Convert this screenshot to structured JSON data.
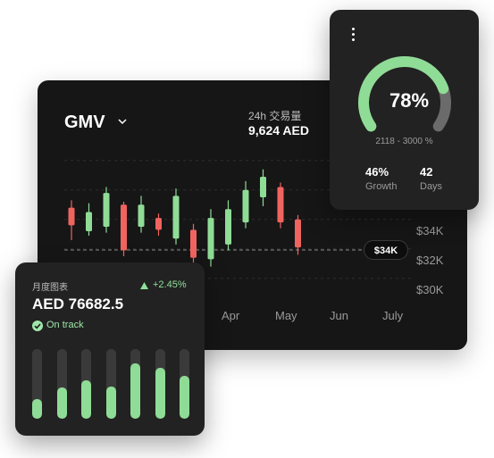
{
  "main_card": {
    "title": "GMV",
    "volume_label": "24h 交易量",
    "volume_value": "9,624 AED",
    "price_badge": "$34K"
  },
  "chart_data": {
    "type": "candlestick",
    "yticks": [
      "$34K",
      "$32K",
      "$30K"
    ],
    "xticks": [
      "Apr",
      "May",
      "Jun",
      "July"
    ],
    "colors": {
      "up": "#8fdc96",
      "down": "#f0645f"
    },
    "candles": [
      {
        "open": 35.6,
        "close": 34.4,
        "high": 36.1,
        "low": 33.4,
        "dir": "down"
      },
      {
        "open": 34.0,
        "close": 35.3,
        "high": 35.9,
        "low": 33.7,
        "dir": "up"
      },
      {
        "open": 34.3,
        "close": 36.6,
        "high": 37.0,
        "low": 33.9,
        "dir": "up"
      },
      {
        "open": 35.8,
        "close": 32.7,
        "high": 36.0,
        "low": 32.3,
        "dir": "down"
      },
      {
        "open": 34.3,
        "close": 35.8,
        "high": 36.4,
        "low": 33.9,
        "dir": "up"
      },
      {
        "open": 34.9,
        "close": 34.1,
        "high": 35.2,
        "low": 33.7,
        "dir": "down"
      },
      {
        "open": 33.5,
        "close": 36.4,
        "high": 36.9,
        "low": 33.1,
        "dir": "up"
      },
      {
        "open": 34.1,
        "close": 32.2,
        "high": 34.5,
        "low": 31.8,
        "dir": "down"
      },
      {
        "open": 32.1,
        "close": 34.9,
        "high": 35.5,
        "low": 31.6,
        "dir": "up"
      },
      {
        "open": 33.1,
        "close": 35.5,
        "high": 36.1,
        "low": 32.7,
        "dir": "up"
      },
      {
        "open": 34.6,
        "close": 36.8,
        "high": 37.4,
        "low": 34.2,
        "dir": "up"
      },
      {
        "open": 36.3,
        "close": 37.7,
        "high": 38.2,
        "low": 35.7,
        "dir": "up"
      },
      {
        "open": 37.0,
        "close": 34.6,
        "high": 37.3,
        "low": 34.2,
        "dir": "down"
      },
      {
        "open": 34.8,
        "close": 32.9,
        "high": 35.1,
        "low": 32.4,
        "dir": "down"
      }
    ]
  },
  "gauge_card": {
    "percent_label": "78%",
    "percent_value": 0.78,
    "range_text": "2118 - 3000 %",
    "stats": [
      {
        "value": "46%",
        "label": "Growth"
      },
      {
        "value": "42",
        "label": "Days"
      }
    ],
    "colors": {
      "fill": "#8fdc96",
      "track": "#6b6b6b"
    }
  },
  "month_card": {
    "label": "月度图表",
    "change": "+2.45%",
    "value": "AED 76682.5",
    "status": "On track",
    "bar_levels": [
      0.28,
      0.45,
      0.55,
      0.46,
      0.8,
      0.73,
      0.62
    ]
  }
}
